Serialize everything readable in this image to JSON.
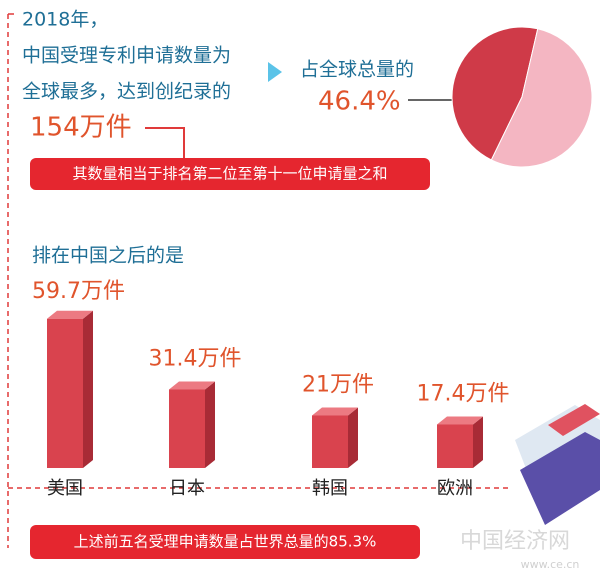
{
  "headline": [
    "2018年，",
    "中国受理专利申请数量为",
    "全球最多，达到创纪录的"
  ],
  "total": "154万件",
  "banner": "其数量相当于排名第二位至第十一位申请量之和",
  "pie_caption": "占全球总量的",
  "bar_caption": "排在中国之后的是",
  "footer": "上述前五名受理申请数量占世界总量的85.3%",
  "watermark": {
    "brand": "中国经济网",
    "url": "www.ce.cn"
  },
  "chart_data": [
    {
      "type": "pie",
      "values": [
        46.4,
        53.6
      ],
      "value_labels": [
        "46.4%",
        null
      ],
      "colors": [
        "#cf3a48",
        "#f4b6c2"
      ]
    },
    {
      "type": "bar",
      "categories": [
        "美国",
        "日本",
        "韩国",
        "欧洲"
      ],
      "values": [
        59.7,
        31.4,
        21,
        17.4
      ],
      "value_labels": [
        "59.7万件",
        "31.4万件",
        "21万件",
        "17.4万件"
      ],
      "color": "#d9434e"
    }
  ]
}
